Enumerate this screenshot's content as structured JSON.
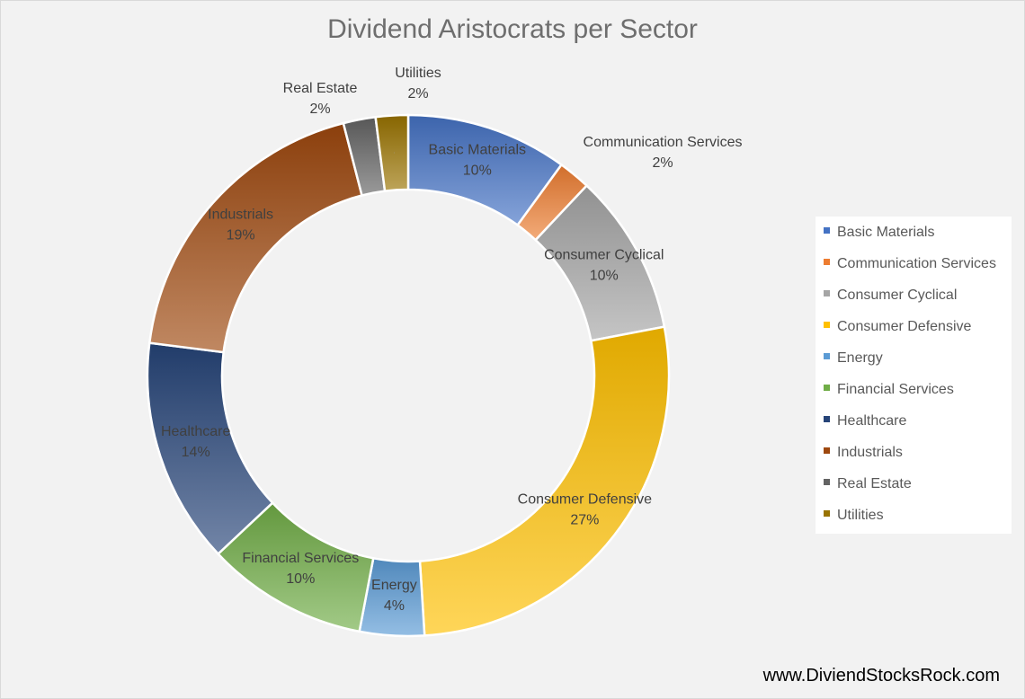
{
  "chart_data": {
    "type": "pie",
    "title": "Dividend Aristocrats per Sector",
    "categories": [
      "Basic Materials",
      "Communication Services",
      "Consumer Cyclical",
      "Consumer Defensive",
      "Energy",
      "Financial Services",
      "Healthcare",
      "Industrials",
      "Real Estate",
      "Utilities"
    ],
    "values": [
      10,
      2,
      10,
      27,
      4,
      10,
      14,
      19,
      2,
      2
    ],
    "labels": [
      "10%",
      "2%",
      "10%",
      "27%",
      "4%",
      "10%",
      "14%",
      "19%",
      "2%",
      "2%"
    ],
    "colors": [
      "#4472c4",
      "#ed7d31",
      "#a5a5a5",
      "#ffc000",
      "#5b9bd5",
      "#70ad47",
      "#264478",
      "#9e480e",
      "#636363",
      "#997300"
    ],
    "legend_position": "right",
    "donut": true
  },
  "watermark": "www.DiviendStocksRock.com"
}
